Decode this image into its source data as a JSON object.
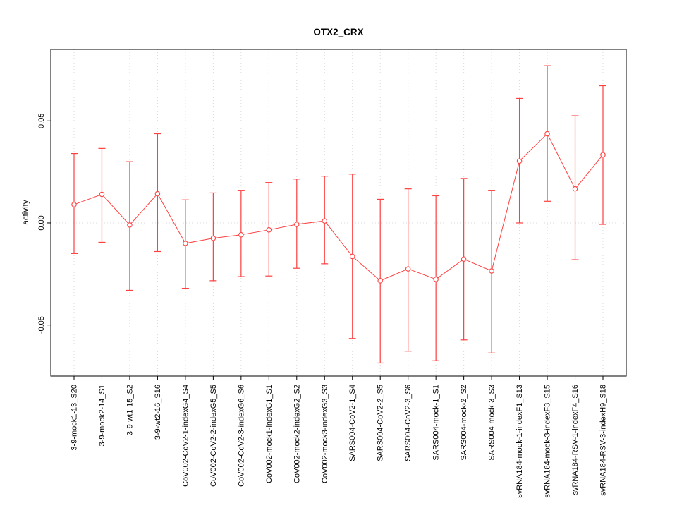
{
  "page": {
    "background": "#ffffff"
  },
  "chart_data": {
    "type": "line",
    "title": "OTX2_CRX",
    "xlabel": "",
    "ylabel": "activity",
    "ylim": [
      -0.075,
      0.085
    ],
    "yticks": [
      {
        "value": -0.05,
        "label": "-0.05"
      },
      {
        "value": 0.0,
        "label": "0.00"
      },
      {
        "value": 0.05,
        "label": "0.05"
      }
    ],
    "grid": {
      "vertical_dotted": true,
      "zero_line_dotted": true
    },
    "legend_position": "none",
    "point_style": "open-circle",
    "error_bars": true,
    "categories": [
      "3-9-mock1-13_S20",
      "3-9-mock2-14_S1",
      "3-9-wt1-15_S2",
      "3-9-wt2-16_S16",
      "CoV002-CoV2-1-indexG4_S4",
      "CoV002-CoV2-2-indexG5_S5",
      "CoV002-CoV2-3-indexG6_S6",
      "CoV002-mock1-indexG1_S1",
      "CoV002-mock2-indexG2_S2",
      "CoV002-mock3-indexG3_S3",
      "SARS004-CoV2-1_S4",
      "SARS004-CoV2-2_S5",
      "SARS004-CoV2-3_S6",
      "SARS004-mock-1_S1",
      "SARS004-mock-2_S2",
      "SARS004-mock-3_S3",
      "svRNA184-mock-1-indexF1_S13",
      "svRNA184-mock-3-indexF3_S15",
      "svRNA184-RSV-1-indexF4_S16",
      "svRNA184-RSV-3-indexH9_S18"
    ],
    "series": [
      {
        "name": "activity",
        "values": [
          0.009,
          0.014,
          -0.001,
          0.0143,
          -0.01,
          -0.0075,
          -0.0058,
          -0.0034,
          -0.0007,
          0.001,
          -0.0164,
          -0.0283,
          -0.0225,
          -0.0276,
          -0.0177,
          -0.0235,
          0.0303,
          0.0437,
          0.0167,
          0.0334
        ],
        "error_upper": [
          0.034,
          0.0365,
          0.03,
          0.0437,
          0.0113,
          0.0147,
          0.016,
          0.0198,
          0.0215,
          0.0229,
          0.0239,
          0.0116,
          0.0167,
          0.0133,
          0.0218,
          0.016,
          0.061,
          0.077,
          0.0525,
          0.0672
        ],
        "error_lower": [
          -0.015,
          -0.0095,
          -0.033,
          -0.014,
          -0.032,
          -0.0283,
          -0.0263,
          -0.026,
          -0.0222,
          -0.02,
          -0.0566,
          -0.0686,
          -0.0628,
          -0.0675,
          -0.0573,
          -0.0637,
          0.0,
          0.0106,
          -0.018,
          -0.0007
        ]
      }
    ]
  },
  "colors": {
    "series": "#ff4040",
    "grid": "#dadada",
    "axis": "#000000",
    "box": "#000000",
    "point_fill": "#ffffff"
  }
}
